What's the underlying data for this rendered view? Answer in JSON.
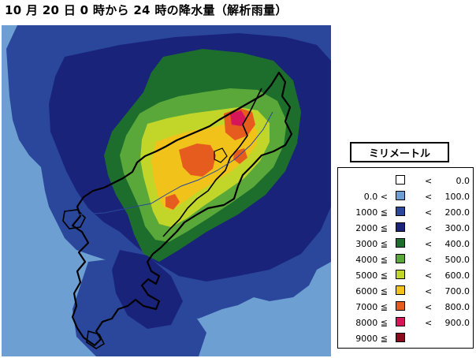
{
  "title": "10 月 20 日 0 時から 24 時の降水量（解析雨量）",
  "legend": {
    "title": "ミリメートル",
    "less_than_symbol": "<",
    "bins": [
      {
        "low": "",
        "high": "0.0",
        "color": "#ffffff"
      },
      {
        "low": "0.0 <",
        "high": "100.0",
        "color": "#6e9fd3"
      },
      {
        "low": "1000 ≦",
        "high": "200.0",
        "color": "#2a479b"
      },
      {
        "low": "2000 ≦",
        "high": "300.0",
        "color": "#1a237a"
      },
      {
        "low": "3000 ≦",
        "high": "400.0",
        "color": "#1d6e2c"
      },
      {
        "low": "4000 ≦",
        "high": "500.0",
        "color": "#5aa83a"
      },
      {
        "low": "5000 ≦",
        "high": "600.0",
        "color": "#c2d62a"
      },
      {
        "low": "6000 ≦",
        "high": "700.0",
        "color": "#f0c21a"
      },
      {
        "low": "7000 ≦",
        "high": "800.0",
        "color": "#e65c1e"
      },
      {
        "low": "8000 ≦",
        "high": "900.0",
        "color": "#d7165a"
      },
      {
        "low": "9000 ≦",
        "high": "",
        "color": "#8b0a1c"
      }
    ]
  }
}
